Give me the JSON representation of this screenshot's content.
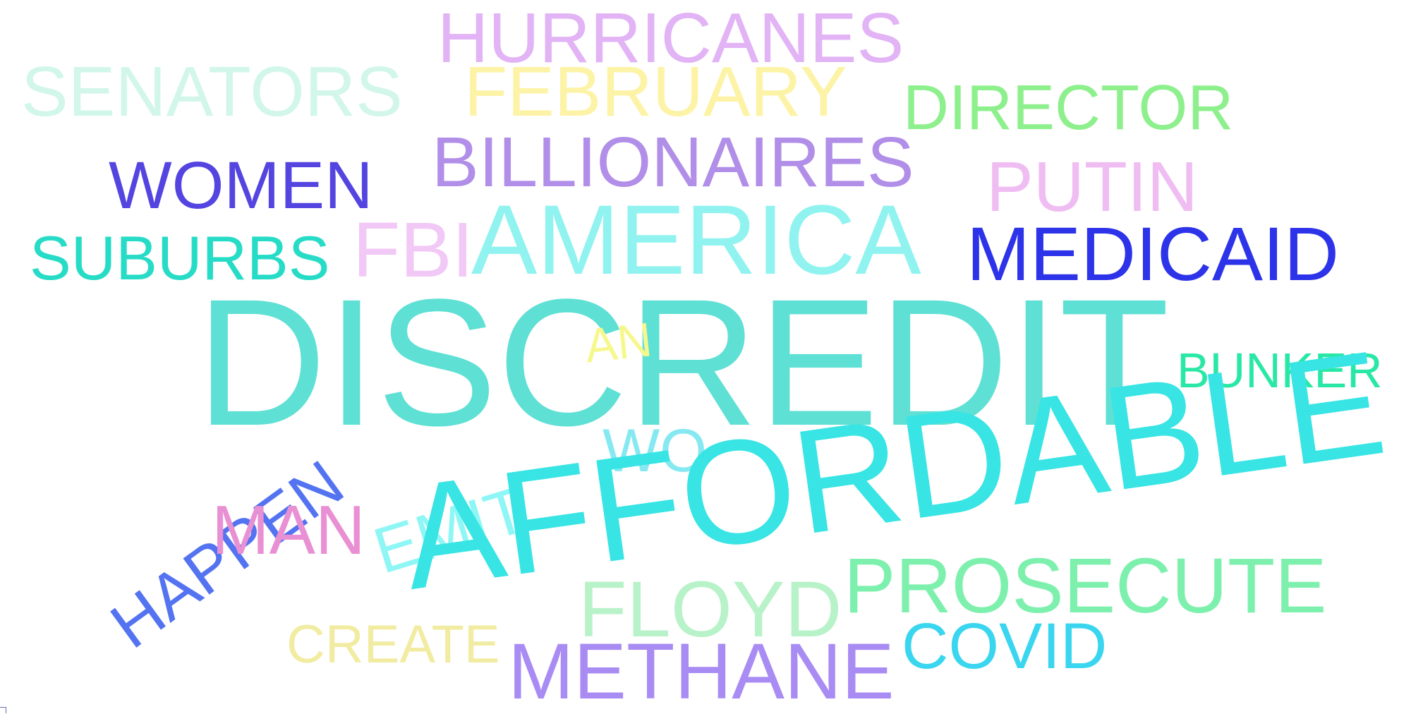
{
  "words": [
    {
      "key": "hurricanes",
      "text": "HURRICANES",
      "color": "#e2b3f5"
    },
    {
      "key": "senators",
      "text": "SENATORS",
      "color": "#d2f7ea"
    },
    {
      "key": "february",
      "text": "FEBRUARY",
      "color": "#fdf3a6"
    },
    {
      "key": "director",
      "text": "DIRECTOR",
      "color": "#8ef08d"
    },
    {
      "key": "women",
      "text": "WOMEN",
      "color": "#5445e0"
    },
    {
      "key": "billionaires",
      "text": "BILLIONAIRES",
      "color": "#b18ee8"
    },
    {
      "key": "putin",
      "text": "PUTIN",
      "color": "#f0bdf3"
    },
    {
      "key": "suburbs",
      "text": "SUBURBS",
      "color": "#26dcc6"
    },
    {
      "key": "fbi",
      "text": "FBI",
      "color": "#f1c8f6"
    },
    {
      "key": "america",
      "text": "AMERICA",
      "color": "#90f3f0"
    },
    {
      "key": "medicaid",
      "text": "MEDICAID",
      "color": "#2d33e8"
    },
    {
      "key": "discredit",
      "text": "DISCREDIT",
      "color": "#5fe0d4"
    },
    {
      "key": "an",
      "text": "AN",
      "color": "#f6f88d"
    },
    {
      "key": "bunker",
      "text": "BUNKER",
      "color": "#29e8a6"
    },
    {
      "key": "happen",
      "text": "HAPPEN",
      "color": "#5473f1"
    },
    {
      "key": "emit",
      "text": "EMIT",
      "color": "#8ef7f6"
    },
    {
      "key": "wo",
      "text": "WO",
      "color": "#86e9f1"
    },
    {
      "key": "affordable",
      "text": "AFFORDABLE",
      "color": "#38e4e4"
    },
    {
      "key": "man",
      "text": "MAN",
      "color": "#e98fd3"
    },
    {
      "key": "prosecute",
      "text": "PROSECUTE",
      "color": "#7ef0ae"
    },
    {
      "key": "floyd",
      "text": "FLOYD",
      "color": "#b8f2c8"
    },
    {
      "key": "covid",
      "text": "COVID",
      "color": "#3ad6ef"
    },
    {
      "key": "create",
      "text": "CREATE",
      "color": "#f1eca1"
    },
    {
      "key": "methane",
      "text": "METHANE",
      "color": "#a98cf3"
    }
  ]
}
